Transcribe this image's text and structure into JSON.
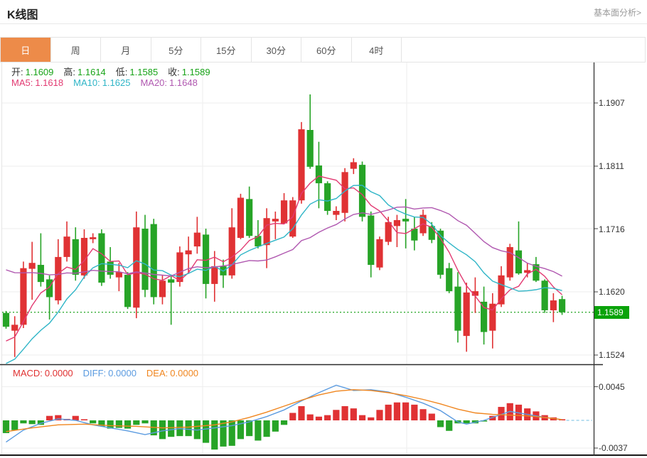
{
  "header": {
    "title": "K线图",
    "link": "基本面分析>"
  },
  "tabs": {
    "items": [
      {
        "name": "day",
        "label": "日",
        "active": true
      },
      {
        "name": "week",
        "label": "周",
        "active": false
      },
      {
        "name": "month",
        "label": "月",
        "active": false
      },
      {
        "name": "5min",
        "label": "5分",
        "active": false
      },
      {
        "name": "15min",
        "label": "15分",
        "active": false
      },
      {
        "name": "30min",
        "label": "30分",
        "active": false
      },
      {
        "name": "60min",
        "label": "60分",
        "active": false
      },
      {
        "name": "4hour",
        "label": "4时",
        "active": false
      }
    ]
  },
  "info": {
    "ohlc": [
      {
        "name": "open",
        "label": "开:",
        "value": "1.1609"
      },
      {
        "name": "high",
        "label": "高:",
        "value": "1.1614"
      },
      {
        "name": "low",
        "label": "低:",
        "value": "1.1585"
      },
      {
        "name": "close",
        "label": "收:",
        "value": "1.1589"
      }
    ],
    "ma": [
      {
        "name": "ma5",
        "label": "MA5:",
        "value": "1.1618",
        "color": "#e23a72"
      },
      {
        "name": "ma10",
        "label": "MA10:",
        "value": "1.1625",
        "color": "#2fb5c7"
      },
      {
        "name": "ma20",
        "label": "MA20:",
        "value": "1.1648",
        "color": "#b058b0"
      }
    ],
    "macd": [
      {
        "name": "macd",
        "label": "MACD:",
        "value": "0.0000",
        "color": "#e03131"
      },
      {
        "name": "diff",
        "label": "DIFF:",
        "value": "0.0000",
        "color": "#5b9be0"
      },
      {
        "name": "dea",
        "label": "DEA:",
        "value": "0.0000",
        "color": "#f0861f"
      }
    ]
  },
  "colors": {
    "up": "#e03234",
    "down": "#27a427",
    "tab_active_bg": "#ed8b49",
    "badge_bg": "#0aa30a",
    "last_price_line": "#1ea51e",
    "ohlc_value": "#17a317",
    "label_text": "#333333",
    "grid": "#ededed",
    "axis": "#444444"
  },
  "chart_data": {
    "type": "candlestick+macd",
    "title": "K线图",
    "grid": true,
    "main": {
      "y_ticks": [
        "1.1907",
        "1.1811",
        "1.1716",
        "1.1620",
        "1.1524"
      ],
      "ylim": [
        1.1509,
        1.1969
      ],
      "last_price": "1.1589",
      "ma_periods": [
        5,
        10,
        20
      ],
      "ma_seeds": [
        1.154,
        1.1505,
        1.1658
      ],
      "candles": [
        [
          1.1588,
          1.1591,
          1.1564,
          1.1567
        ],
        [
          1.1561,
          1.1583,
          1.1521,
          1.157
        ],
        [
          1.157,
          1.1666,
          1.1565,
          1.1656
        ],
        [
          1.1655,
          1.1696,
          1.1608,
          1.1664
        ],
        [
          1.1661,
          1.1709,
          1.1628,
          1.1635
        ],
        [
          1.1639,
          1.1645,
          1.1578,
          1.1612
        ],
        [
          1.1607,
          1.17,
          1.1601,
          1.1673
        ],
        [
          1.1673,
          1.1727,
          1.1666,
          1.1704
        ],
        [
          1.17,
          1.1718,
          1.1637,
          1.1646
        ],
        [
          1.1645,
          1.1715,
          1.164,
          1.1702
        ],
        [
          1.17,
          1.1709,
          1.1694,
          1.1703
        ],
        [
          1.1709,
          1.1715,
          1.1629,
          1.1634
        ],
        [
          1.1666,
          1.1688,
          1.164,
          1.1646
        ],
        [
          1.1642,
          1.1664,
          1.1621,
          1.165
        ],
        [
          1.1646,
          1.165,
          1.1594,
          1.1597
        ],
        [
          1.1596,
          1.1742,
          1.158,
          1.1718
        ],
        [
          1.1716,
          1.1737,
          1.1612,
          1.1623
        ],
        [
          1.1723,
          1.1731,
          1.1601,
          1.1612
        ],
        [
          1.1612,
          1.1646,
          1.1601,
          1.1637
        ],
        [
          1.1639,
          1.1646,
          1.157,
          1.1634
        ],
        [
          1.1635,
          1.1689,
          1.1628,
          1.168
        ],
        [
          1.1677,
          1.1704,
          1.1648,
          1.1683
        ],
        [
          1.1689,
          1.1734,
          1.1678,
          1.171
        ],
        [
          1.1707,
          1.1716,
          1.161,
          1.1632
        ],
        [
          1.1632,
          1.1682,
          1.1605,
          1.1659
        ],
        [
          1.1659,
          1.1669,
          1.1626,
          1.1645
        ],
        [
          1.1645,
          1.1747,
          1.164,
          1.1718
        ],
        [
          1.1702,
          1.1769,
          1.17,
          1.1763
        ],
        [
          1.1761,
          1.178,
          1.1702,
          1.1705
        ],
        [
          1.1705,
          1.1729,
          1.1686,
          1.1689
        ],
        [
          1.1691,
          1.1747,
          1.1656,
          1.1732
        ],
        [
          1.1727,
          1.1742,
          1.17,
          1.1731
        ],
        [
          1.1724,
          1.177,
          1.1723,
          1.1759
        ],
        [
          1.1704,
          1.1764,
          1.1702,
          1.1759
        ],
        [
          1.1759,
          1.1878,
          1.1754,
          1.1867
        ],
        [
          1.1866,
          1.192,
          1.1807,
          1.181
        ],
        [
          1.1812,
          1.1848,
          1.1747,
          1.1785
        ],
        [
          1.1785,
          1.1788,
          1.1737,
          1.1743
        ],
        [
          1.1737,
          1.175,
          1.1729,
          1.1743
        ],
        [
          1.174,
          1.1808,
          1.1727,
          1.1802
        ],
        [
          1.1807,
          1.1823,
          1.1799,
          1.1817
        ],
        [
          1.1813,
          1.1818,
          1.1727,
          1.1734
        ],
        [
          1.1736,
          1.1742,
          1.1642,
          1.1661
        ],
        [
          1.1657,
          1.1704,
          1.1653,
          1.17
        ],
        [
          1.1696,
          1.1734,
          1.1691,
          1.1726
        ],
        [
          1.172,
          1.1737,
          1.1688,
          1.1729
        ],
        [
          1.1731,
          1.1761,
          1.1686,
          1.1727
        ],
        [
          1.1716,
          1.1734,
          1.1683,
          1.1698
        ],
        [
          1.1709,
          1.1745,
          1.1705,
          1.1737
        ],
        [
          1.172,
          1.1726,
          1.1694,
          1.1699
        ],
        [
          1.1713,
          1.1716,
          1.164,
          1.1646
        ],
        [
          1.1656,
          1.1664,
          1.1618,
          1.1621
        ],
        [
          1.1628,
          1.165,
          1.1543,
          1.1561
        ],
        [
          1.1553,
          1.1634,
          1.1529,
          1.1619
        ],
        [
          1.1614,
          1.1642,
          1.1588,
          1.1621
        ],
        [
          1.1605,
          1.1628,
          1.154,
          1.1559
        ],
        [
          1.1561,
          1.1618,
          1.1534,
          1.1602
        ],
        [
          1.1601,
          1.1659,
          1.1597,
          1.1645
        ],
        [
          1.1642,
          1.1693,
          1.1637,
          1.1688
        ],
        [
          1.1683,
          1.1727,
          1.1646,
          1.1648
        ],
        [
          1.1649,
          1.1664,
          1.1642,
          1.1653
        ],
        [
          1.1662,
          1.1673,
          1.1635,
          1.1637
        ],
        [
          1.1637,
          1.1639,
          1.1588,
          1.1592
        ],
        [
          1.1592,
          1.1618,
          1.1574,
          1.1607
        ],
        [
          1.1609,
          1.1614,
          1.1585,
          1.1589
        ]
      ]
    },
    "macd": {
      "y_ticks": [
        "0.0045",
        "-0.0037"
      ],
      "histogram": [
        -0.0017,
        -0.0013,
        -0.0004,
        -0.0005,
        -0.0006,
        0.0006,
        0.0007,
        0.0002,
        0.0006,
        0.0001,
        -0.0004,
        -0.0008,
        -0.0011,
        -0.001,
        -0.0011,
        -0.0006,
        -0.0004,
        -0.002,
        -0.0025,
        -0.0022,
        -0.0021,
        -0.0021,
        -0.0025,
        -0.003,
        -0.0039,
        -0.0035,
        -0.0034,
        -0.0025,
        -0.0021,
        -0.0027,
        -0.0022,
        -0.0015,
        -0.0006,
        0.001,
        0.0019,
        0.0008,
        0.0005,
        0.0007,
        0.0014,
        0.0019,
        0.0016,
        0.0007,
        0.0004,
        0.0014,
        0.0021,
        0.0024,
        0.0024,
        0.0021,
        0.0015,
        0.0009,
        -0.0009,
        -0.0014,
        -0.0004,
        -0.0004,
        -0.0004,
        -0.0001,
        0.0006,
        0.0018,
        0.0023,
        0.0021,
        0.0016,
        0.0012,
        0.0007,
        0.0004,
        0.0001
      ],
      "diff": [
        [
          0,
          -0.0029
        ],
        [
          2,
          -0.0013
        ],
        [
          4,
          -0.0004
        ],
        [
          6,
          0.0002
        ],
        [
          8,
          0.0
        ],
        [
          10,
          -0.0006
        ],
        [
          12,
          -0.001
        ],
        [
          14,
          -0.0014
        ],
        [
          16,
          -0.0019
        ],
        [
          18,
          -0.0014
        ],
        [
          20,
          -0.0011
        ],
        [
          22,
          -0.0013
        ],
        [
          24,
          -0.001
        ],
        [
          26,
          -0.0007
        ],
        [
          28,
          -0.0002
        ],
        [
          30,
          0.0005
        ],
        [
          32,
          0.0014
        ],
        [
          34,
          0.0026
        ],
        [
          36,
          0.0037
        ],
        [
          38,
          0.0047
        ],
        [
          40,
          0.004
        ],
        [
          42,
          0.0041
        ],
        [
          44,
          0.0038
        ],
        [
          46,
          0.0031
        ],
        [
          48,
          0.0023
        ],
        [
          50,
          0.0013
        ],
        [
          52,
          -0.0002
        ],
        [
          53,
          -0.0005
        ],
        [
          55,
          0.0
        ],
        [
          57,
          0.0008
        ],
        [
          58,
          0.0012
        ],
        [
          60,
          0.0008
        ],
        [
          62,
          0.0004
        ],
        [
          64,
          0.0001
        ]
      ],
      "dea": [
        [
          0,
          -0.0015
        ],
        [
          3,
          -0.001
        ],
        [
          6,
          -0.0006
        ],
        [
          9,
          -0.0005
        ],
        [
          12,
          -0.0007
        ],
        [
          15,
          -0.0008
        ],
        [
          18,
          -0.001
        ],
        [
          21,
          -0.0009
        ],
        [
          24,
          -0.0006
        ],
        [
          26,
          -0.0002
        ],
        [
          28,
          0.0004
        ],
        [
          30,
          0.0011
        ],
        [
          32,
          0.0019
        ],
        [
          34,
          0.0027
        ],
        [
          36,
          0.0034
        ],
        [
          38,
          0.0039
        ],
        [
          40,
          0.0041
        ],
        [
          42,
          0.004
        ],
        [
          44,
          0.0037
        ],
        [
          46,
          0.0033
        ],
        [
          48,
          0.0028
        ],
        [
          50,
          0.0022
        ],
        [
          52,
          0.0015
        ],
        [
          54,
          0.001
        ],
        [
          56,
          0.0008
        ],
        [
          58,
          0.0007
        ],
        [
          60,
          0.0006
        ],
        [
          62,
          0.0004
        ],
        [
          64,
          0.0001
        ]
      ]
    }
  }
}
